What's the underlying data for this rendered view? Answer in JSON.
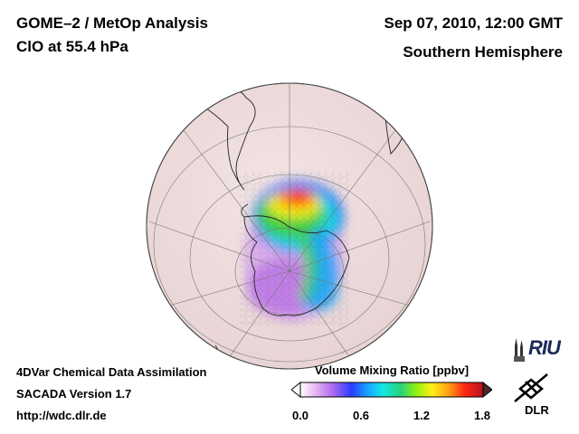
{
  "header": {
    "title": "GOME–2 / MetOp Analysis",
    "species": "ClO at 55.4 hPa",
    "datetime": "Sep 07, 2010, 12:00 GMT",
    "region": "Southern Hemisphere"
  },
  "footer": {
    "line1": "4DVar Chemical Data Assimilation",
    "line2": "SACADA Version 1.7",
    "line3": "http://wdc.dlr.de"
  },
  "colorbar": {
    "title": "Volume Mixing Ratio [ppbv]",
    "min": 0.0,
    "max": 1.8,
    "ticks": [
      "0.0",
      "0.6",
      "1.2",
      "1.8"
    ],
    "tick_values": [
      0.0,
      0.6,
      1.2,
      1.8
    ],
    "colors": [
      "#ffffff",
      "#e6b8f2",
      "#b46ef0",
      "#2a3cff",
      "#17a6ff",
      "#14e6e6",
      "#28d27a",
      "#8cf014",
      "#fff014",
      "#ffa014",
      "#ff2814",
      "#b4141e"
    ]
  },
  "logos": {
    "riu": "RIU",
    "dlr": "DLR"
  },
  "map": {
    "projection": "orthographic",
    "hemisphere": "south",
    "background_color": "#f1e0e0"
  }
}
